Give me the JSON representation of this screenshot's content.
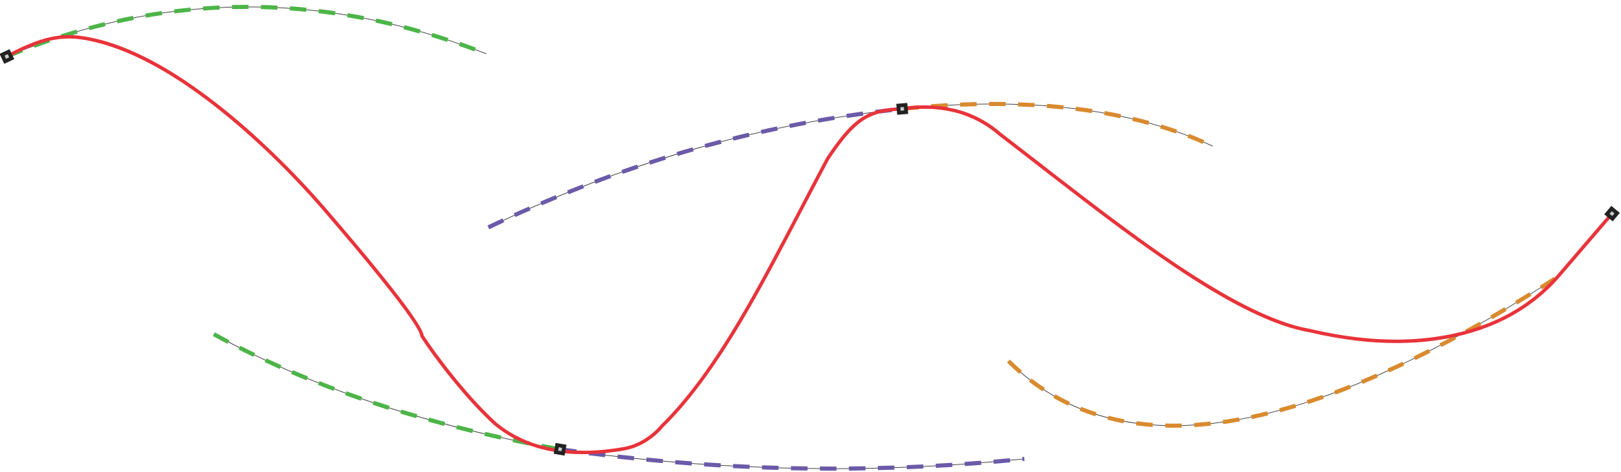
{
  "colors": {
    "spline": "#e8333a",
    "handle_green": "#4cb548",
    "handle_purple": "#6a5aa8",
    "handle_orange": "#d98a2e",
    "guide_line": "#444444",
    "anchor_fill": "#222222",
    "anchor_center": "#cccccc"
  },
  "icons": {
    "anchor": "square-anchor-point"
  }
}
